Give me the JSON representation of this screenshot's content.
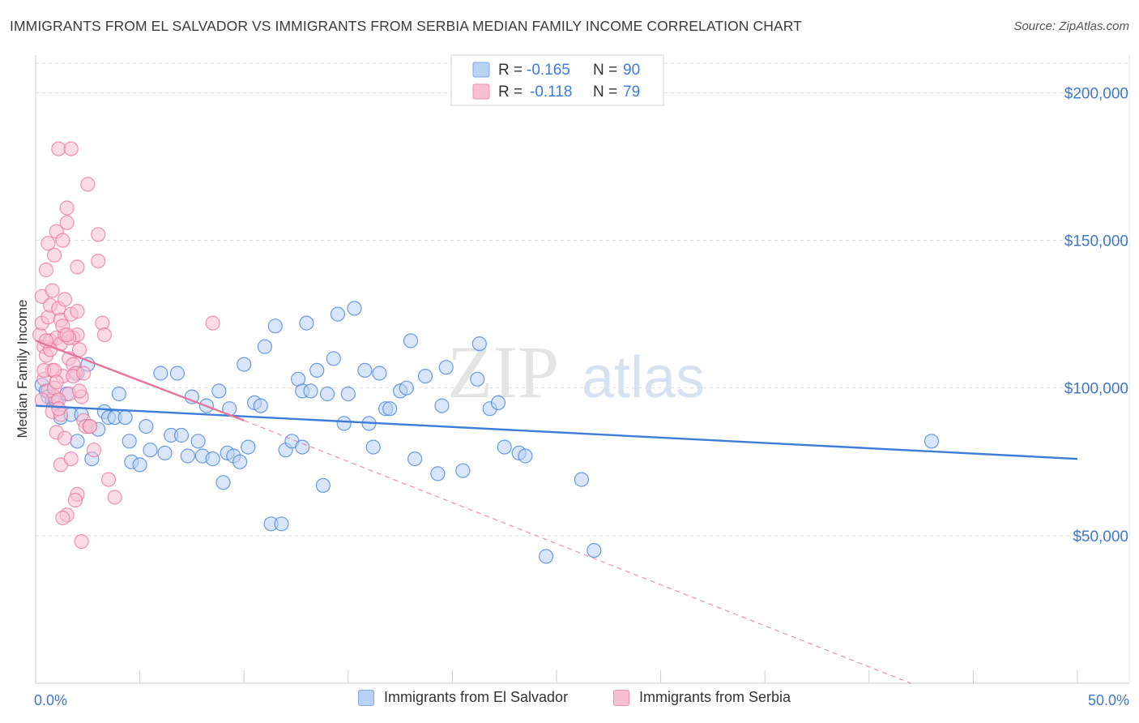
{
  "header": {
    "title": "IMMIGRANTS FROM EL SALVADOR VS IMMIGRANTS FROM SERBIA MEDIAN FAMILY INCOME CORRELATION CHART",
    "source": "Source: ZipAtlas.com"
  },
  "watermark": {
    "zip": "ZIP",
    "atlas": "atlas"
  },
  "colors": {
    "blue": "#3d7dd8",
    "blue_fill": "#b9d2f4",
    "pink": "#e8739c",
    "pink_fill": "#f7bfd1",
    "axis_text": "#3f78c9",
    "grid": "#d9d9d9"
  },
  "chart_data": {
    "type": "scatter",
    "title": "IMMIGRANTS FROM EL SALVADOR VS IMMIGRANTS FROM SERBIA MEDIAN FAMILY INCOME CORRELATION CHART",
    "ylabel": "Median Family Income",
    "xlabel": "",
    "xlim": [
      0,
      50
    ],
    "ylim": [
      0,
      210000
    ],
    "x_tick_labels": {
      "min": "0.0%",
      "max": "50.0%"
    },
    "y_ticks": [
      {
        "value": 50000,
        "label": "$50,000"
      },
      {
        "value": 100000,
        "label": "$100,000"
      },
      {
        "value": 150000,
        "label": "$150,000"
      },
      {
        "value": 200000,
        "label": "$200,000"
      }
    ],
    "grid": true,
    "legend_position": "top-center",
    "series": [
      {
        "name": "Immigrants from El Salvador",
        "color": "#3d7dd8",
        "fill": "#b9d2f4",
        "r_label": "R =",
        "r_value": "-0.165",
        "n_label": "N =",
        "n_value": "90",
        "trend": {
          "x0": 0,
          "y0": 94000,
          "x1": 50,
          "y1": 76000,
          "dashed_extension": false
        },
        "points": [
          [
            0.3,
            101000
          ],
          [
            0.5,
            99000
          ],
          [
            0.6,
            97000
          ],
          [
            0.8,
            96000
          ],
          [
            1.0,
            95000
          ],
          [
            1.2,
            90000
          ],
          [
            1.5,
            98000
          ],
          [
            1.7,
            91000
          ],
          [
            2.0,
            105000
          ],
          [
            2.2,
            91000
          ],
          [
            2.5,
            108000
          ],
          [
            2.7,
            76000
          ],
          [
            3.0,
            86000
          ],
          [
            3.3,
            92000
          ],
          [
            3.5,
            90000
          ],
          [
            3.8,
            90000
          ],
          [
            4.0,
            98000
          ],
          [
            4.3,
            90000
          ],
          [
            4.6,
            75000
          ],
          [
            5.0,
            74000
          ],
          [
            5.3,
            87000
          ],
          [
            5.5,
            79000
          ],
          [
            6.0,
            105000
          ],
          [
            6.2,
            78000
          ],
          [
            6.5,
            84000
          ],
          [
            6.8,
            105000
          ],
          [
            7.0,
            84000
          ],
          [
            7.3,
            77000
          ],
          [
            7.5,
            97000
          ],
          [
            7.8,
            82000
          ],
          [
            8.0,
            77000
          ],
          [
            8.2,
            94000
          ],
          [
            8.5,
            76000
          ],
          [
            8.8,
            99000
          ],
          [
            9.0,
            68000
          ],
          [
            9.2,
            78000
          ],
          [
            9.5,
            77000
          ],
          [
            9.8,
            75000
          ],
          [
            10.0,
            108000
          ],
          [
            10.2,
            80000
          ],
          [
            10.5,
            95000
          ],
          [
            10.8,
            94000
          ],
          [
            11.0,
            114000
          ],
          [
            11.3,
            54000
          ],
          [
            11.5,
            121000
          ],
          [
            11.8,
            54000
          ],
          [
            12.0,
            79000
          ],
          [
            12.3,
            82000
          ],
          [
            12.6,
            103000
          ],
          [
            12.8,
            99000
          ],
          [
            13.0,
            122000
          ],
          [
            13.2,
            99000
          ],
          [
            13.5,
            106000
          ],
          [
            13.8,
            67000
          ],
          [
            14.0,
            98000
          ],
          [
            14.3,
            110000
          ],
          [
            14.5,
            125000
          ],
          [
            14.8,
            88000
          ],
          [
            15.0,
            98000
          ],
          [
            15.3,
            127000
          ],
          [
            15.8,
            106000
          ],
          [
            16.2,
            80000
          ],
          [
            16.5,
            105000
          ],
          [
            16.8,
            93000
          ],
          [
            17.0,
            93000
          ],
          [
            17.5,
            99000
          ],
          [
            17.8,
            100000
          ],
          [
            18.0,
            116000
          ],
          [
            18.2,
            76000
          ],
          [
            18.7,
            104000
          ],
          [
            19.3,
            71000
          ],
          [
            19.5,
            94000
          ],
          [
            19.7,
            107000
          ],
          [
            20.5,
            72000
          ],
          [
            21.2,
            103000
          ],
          [
            21.3,
            115000
          ],
          [
            21.8,
            93000
          ],
          [
            22.2,
            95000
          ],
          [
            22.5,
            80000
          ],
          [
            23.2,
            78000
          ],
          [
            23.5,
            77000
          ],
          [
            24.5,
            43000
          ],
          [
            26.2,
            69000
          ],
          [
            26.8,
            45000
          ],
          [
            43.0,
            82000
          ],
          [
            4.5,
            82000
          ],
          [
            9.3,
            93000
          ],
          [
            12.8,
            80000
          ],
          [
            16.0,
            88000
          ],
          [
            2.0,
            82000
          ]
        ]
      },
      {
        "name": "Immigrants from Serbia",
        "color": "#e8739c",
        "fill": "#f7bfd1",
        "r_label": "R =",
        "r_value": "-0.118",
        "n_label": "N =",
        "n_value": "79",
        "trend": {
          "x0": 0,
          "y0": 116000,
          "x1": 10,
          "y1": 89000,
          "dashed_to": {
            "x": 42,
            "y": 0
          }
        },
        "points": [
          [
            0.2,
            118000
          ],
          [
            0.3,
            131000
          ],
          [
            0.3,
            122000
          ],
          [
            0.4,
            103000
          ],
          [
            0.4,
            114000
          ],
          [
            0.5,
            111000
          ],
          [
            0.5,
            140000
          ],
          [
            0.6,
            149000
          ],
          [
            0.6,
            124000
          ],
          [
            0.7,
            128000
          ],
          [
            0.7,
            116000
          ],
          [
            0.8,
            133000
          ],
          [
            0.8,
            106000
          ],
          [
            0.9,
            145000
          ],
          [
            0.9,
            97000
          ],
          [
            1.0,
            153000
          ],
          [
            1.0,
            117000
          ],
          [
            1.1,
            181000
          ],
          [
            1.1,
            127000
          ],
          [
            1.2,
            123000
          ],
          [
            1.2,
            115000
          ],
          [
            1.3,
            150000
          ],
          [
            1.3,
            104000
          ],
          [
            1.4,
            130000
          ],
          [
            1.4,
            118000
          ],
          [
            1.5,
            161000
          ],
          [
            1.5,
            156000
          ],
          [
            1.6,
            110000
          ],
          [
            1.6,
            98000
          ],
          [
            1.7,
            181000
          ],
          [
            1.7,
            125000
          ],
          [
            1.8,
            117000
          ],
          [
            1.8,
            108000
          ],
          [
            1.9,
            105000
          ],
          [
            2.0,
            141000
          ],
          [
            2.0,
            118000
          ],
          [
            2.1,
            113000
          ],
          [
            2.2,
            97000
          ],
          [
            2.3,
            89000
          ],
          [
            2.4,
            87000
          ],
          [
            2.5,
            169000
          ],
          [
            2.6,
            87000
          ],
          [
            2.8,
            79000
          ],
          [
            3.0,
            152000
          ],
          [
            3.0,
            143000
          ],
          [
            3.2,
            122000
          ],
          [
            3.3,
            118000
          ],
          [
            3.5,
            69000
          ],
          [
            3.8,
            63000
          ],
          [
            2.0,
            64000
          ],
          [
            1.9,
            62000
          ],
          [
            1.5,
            57000
          ],
          [
            1.3,
            56000
          ],
          [
            1.2,
            74000
          ],
          [
            1.0,
            85000
          ],
          [
            0.8,
            92000
          ],
          [
            1.4,
            83000
          ],
          [
            1.7,
            76000
          ],
          [
            2.2,
            48000
          ],
          [
            2.6,
            87000
          ],
          [
            8.5,
            122000
          ],
          [
            0.6,
            99000
          ],
          [
            0.9,
            100000
          ],
          [
            1.1,
            96000
          ],
          [
            1.3,
            121000
          ],
          [
            0.4,
            106000
          ],
          [
            0.7,
            113000
          ],
          [
            1.6,
            117000
          ],
          [
            1.8,
            104000
          ],
          [
            1.2,
            91000
          ],
          [
            0.5,
            116000
          ],
          [
            0.9,
            106000
          ],
          [
            1.0,
            102000
          ],
          [
            1.5,
            118000
          ],
          [
            2.0,
            126000
          ],
          [
            0.3,
            96000
          ],
          [
            2.3,
            105000
          ],
          [
            1.1,
            93000
          ],
          [
            2.1,
            99000
          ]
        ]
      }
    ]
  }
}
